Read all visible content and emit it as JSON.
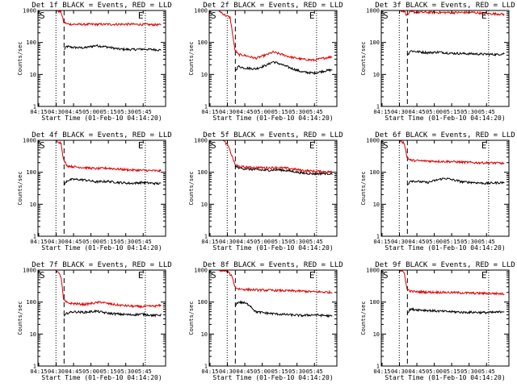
{
  "figure": {
    "background": "#ffffff",
    "events_color": "#000000",
    "lld_color": "#e00000",
    "event_markers": [
      "S",
      "E"
    ]
  },
  "shared_axes": {
    "xlabel": "Start Time (01-Feb-10 04:14:20)",
    "ylabel": "Counts/sec",
    "x_ticks": [
      "04:15",
      "04:30",
      "04:45",
      "05:00",
      "05:15",
      "05:30",
      "05:45"
    ],
    "y_ticks": [
      "1",
      "10",
      "100",
      "1000"
    ],
    "x_range_minutes": [
      0,
      110
    ],
    "y_range": [
      1,
      1000
    ],
    "y_scale": "log"
  },
  "chart_data": [
    {
      "type": "line",
      "title": "Det 1f BLACK = Events, RED = LLD",
      "x_tick_minutes": [
        0.67,
        15.67,
        30.67,
        45.67,
        60.67,
        75.67,
        90.67
      ],
      "vlines_dotted": [
        15.5,
        92.5
      ],
      "vline_dashed": 22.5,
      "series": [
        {
          "name": "Events",
          "color": "#000000",
          "start": 22.5,
          "x": [
            22.5,
            25,
            30,
            40,
            50,
            60,
            70,
            80,
            90,
            100,
            106
          ],
          "y": [
            60,
            75,
            70,
            68,
            80,
            72,
            62,
            60,
            62,
            60,
            58
          ]
        },
        {
          "name": "LLD",
          "color": "#e00000",
          "start": 16,
          "x": [
            16,
            20,
            22,
            25,
            30,
            40,
            60,
            80,
            100,
            106
          ],
          "y": [
            1000,
            900,
            450,
            380,
            370,
            368,
            370,
            372,
            360,
            355
          ]
        }
      ]
    },
    {
      "type": "line",
      "title": "Det 2f BLACK = Events, RED = LLD",
      "x_tick_minutes": [
        0.67,
        15.67,
        30.67,
        45.67,
        60.67,
        75.67,
        90.67
      ],
      "vlines_dotted": [
        15.5,
        92.5
      ],
      "vline_dashed": 22.5,
      "series": [
        {
          "name": "Events",
          "color": "#000000",
          "start": 22.5,
          "x": [
            22.5,
            25,
            30,
            40,
            50,
            55,
            60,
            70,
            80,
            90,
            100,
            106
          ],
          "y": [
            13,
            18,
            16,
            15,
            20,
            25,
            22,
            16,
            12,
            11,
            13,
            14
          ]
        },
        {
          "name": "LLD",
          "color": "#e00000",
          "start": 8,
          "x": [
            8,
            14,
            18,
            20,
            22,
            25,
            30,
            40,
            50,
            55,
            60,
            70,
            80,
            90,
            100,
            106
          ],
          "y": [
            1000,
            700,
            600,
            200,
            60,
            42,
            40,
            32,
            42,
            50,
            45,
            35,
            30,
            28,
            33,
            36
          ]
        }
      ]
    },
    {
      "type": "line",
      "title": "Det 3f BLACK = Events, RED = LLD",
      "x_tick_minutes": [
        0.67,
        15.67,
        30.67,
        45.67,
        60.67,
        75.67,
        90.67
      ],
      "vlines_dotted": [
        15.5,
        92.5
      ],
      "vline_dashed": 22.5,
      "series": [
        {
          "name": "Events",
          "color": "#000000",
          "start": 22.5,
          "x": [
            22.5,
            25,
            30,
            40,
            50,
            60,
            70,
            80,
            90,
            100,
            106
          ],
          "y": [
            40,
            55,
            52,
            48,
            50,
            46,
            45,
            44,
            43,
            42,
            45
          ]
        },
        {
          "name": "LLD",
          "color": "#e00000",
          "start": 16,
          "x": [
            16,
            20,
            22,
            25,
            30,
            40,
            60,
            80,
            90,
            100,
            106
          ],
          "y": [
            1000,
            950,
            700,
            900,
            880,
            870,
            860,
            870,
            800,
            780,
            760
          ]
        }
      ]
    },
    {
      "type": "line",
      "title": "Det 4f BLACK = Events, RED = LLD",
      "x_tick_minutes": [
        0.67,
        15.67,
        30.67,
        45.67,
        60.67,
        75.67,
        90.67
      ],
      "vlines_dotted": [
        15.5,
        92.5
      ],
      "vline_dashed": 22.5,
      "series": [
        {
          "name": "Events",
          "color": "#000000",
          "start": 22.5,
          "x": [
            22.5,
            25,
            30,
            40,
            50,
            60,
            70,
            80,
            90,
            100,
            106
          ],
          "y": [
            40,
            55,
            60,
            58,
            50,
            52,
            48,
            45,
            48,
            45,
            44
          ]
        },
        {
          "name": "LLD",
          "color": "#e00000",
          "start": 16,
          "x": [
            16,
            20,
            22,
            25,
            30,
            40,
            50,
            60,
            70,
            80,
            90,
            100,
            106
          ],
          "y": [
            1000,
            800,
            250,
            160,
            150,
            140,
            130,
            135,
            125,
            118,
            115,
            112,
            110
          ]
        }
      ]
    },
    {
      "type": "line",
      "title": "Det 5f BLACK = Events, RED = LLD",
      "x_tick_minutes": [
        0.67,
        15.67,
        30.67,
        45.67,
        60.67,
        75.67,
        90.67
      ],
      "vlines_dotted": [
        15.5,
        92.5
      ],
      "vline_dashed": 22.5,
      "series": [
        {
          "name": "Events",
          "color": "#000000",
          "start": 22.5,
          "x": [
            22.5,
            25,
            30,
            40,
            50,
            60,
            70,
            80,
            90,
            100,
            106
          ],
          "y": [
            160,
            140,
            130,
            120,
            115,
            120,
            110,
            95,
            90,
            92,
            90
          ]
        },
        {
          "name": "LLD",
          "color": "#e00000",
          "start": 12,
          "x": [
            12,
            16,
            20,
            22,
            25,
            30,
            40,
            50,
            60,
            70,
            80,
            90,
            100,
            106
          ],
          "y": [
            1000,
            700,
            300,
            180,
            155,
            145,
            140,
            138,
            140,
            130,
            115,
            108,
            105,
            102
          ]
        }
      ]
    },
    {
      "type": "line",
      "title": "Det 6f BLACK = Events, RED = LLD",
      "x_tick_minutes": [
        0.67,
        15.67,
        30.67,
        45.67,
        60.67,
        75.67,
        90.67
      ],
      "vlines_dotted": [
        15.5,
        92.5
      ],
      "vline_dashed": 22.5,
      "series": [
        {
          "name": "Events",
          "color": "#000000",
          "start": 22.5,
          "x": [
            22.5,
            25,
            30,
            40,
            50,
            55,
            60,
            70,
            80,
            90,
            100,
            106
          ],
          "y": [
            40,
            55,
            52,
            48,
            60,
            65,
            60,
            50,
            48,
            45,
            47,
            48
          ]
        },
        {
          "name": "LLD",
          "color": "#e00000",
          "start": 16,
          "x": [
            16,
            20,
            22,
            25,
            30,
            40,
            60,
            80,
            100,
            106
          ],
          "y": [
            1000,
            800,
            300,
            240,
            230,
            225,
            215,
            200,
            195,
            190
          ]
        }
      ]
    },
    {
      "type": "line",
      "title": "Det 7f BLACK = Events, RED = LLD",
      "x_tick_minutes": [
        0.67,
        15.67,
        30.67,
        45.67,
        60.67,
        75.67,
        90.67
      ],
      "vlines_dotted": [
        15.5,
        92.5
      ],
      "vline_dashed": 22.5,
      "series": [
        {
          "name": "Events",
          "color": "#000000",
          "start": 22.5,
          "x": [
            22.5,
            25,
            30,
            40,
            50,
            60,
            70,
            80,
            90,
            100,
            106
          ],
          "y": [
            35,
            45,
            50,
            48,
            52,
            45,
            42,
            40,
            42,
            38,
            40
          ]
        },
        {
          "name": "LLD",
          "color": "#e00000",
          "start": 16,
          "x": [
            16,
            20,
            22,
            25,
            30,
            40,
            50,
            55,
            60,
            70,
            80,
            90,
            100,
            106
          ],
          "y": [
            1000,
            600,
            120,
            95,
            90,
            85,
            95,
            100,
            90,
            80,
            75,
            72,
            75,
            78
          ]
        }
      ]
    },
    {
      "type": "line",
      "title": "Det 8f BLACK = Events, RED = LLD",
      "x_tick_minutes": [
        0.67,
        15.67,
        30.67,
        45.67,
        60.67,
        75.67,
        90.67
      ],
      "vlines_dotted": [
        15.5,
        92.5
      ],
      "vline_dashed": 22.5,
      "series": [
        {
          "name": "Events",
          "color": "#000000",
          "start": 22.5,
          "x": [
            22.5,
            25,
            30,
            35,
            38,
            40,
            50,
            60,
            70,
            80,
            90,
            100,
            106
          ],
          "y": [
            80,
            100,
            95,
            80,
            60,
            50,
            45,
            42,
            40,
            38,
            40,
            38,
            36
          ]
        },
        {
          "name": "LLD",
          "color": "#e00000",
          "start": 8,
          "x": [
            8,
            16,
            20,
            22,
            25,
            30,
            40,
            50,
            60,
            70,
            80,
            90,
            100,
            106
          ],
          "y": [
            1000,
            900,
            600,
            300,
            260,
            250,
            240,
            235,
            230,
            225,
            220,
            210,
            205,
            200
          ]
        }
      ]
    },
    {
      "type": "line",
      "title": "Det 9f BLACK = Events, RED = LLD",
      "x_tick_minutes": [
        0.67,
        15.67,
        30.67,
        45.67,
        60.67,
        75.67,
        90.67
      ],
      "vlines_dotted": [
        15.5,
        92.5
      ],
      "vline_dashed": 22.5,
      "series": [
        {
          "name": "Events",
          "color": "#000000",
          "start": 22.5,
          "x": [
            22.5,
            25,
            30,
            40,
            50,
            60,
            70,
            80,
            90,
            100,
            106
          ],
          "y": [
            45,
            60,
            58,
            55,
            52,
            50,
            48,
            48,
            47,
            48,
            52
          ]
        },
        {
          "name": "LLD",
          "color": "#e00000",
          "start": 16,
          "x": [
            16,
            20,
            22,
            25,
            30,
            40,
            60,
            80,
            100,
            106
          ],
          "y": [
            1000,
            800,
            260,
            220,
            210,
            205,
            200,
            190,
            185,
            180
          ]
        }
      ]
    }
  ]
}
